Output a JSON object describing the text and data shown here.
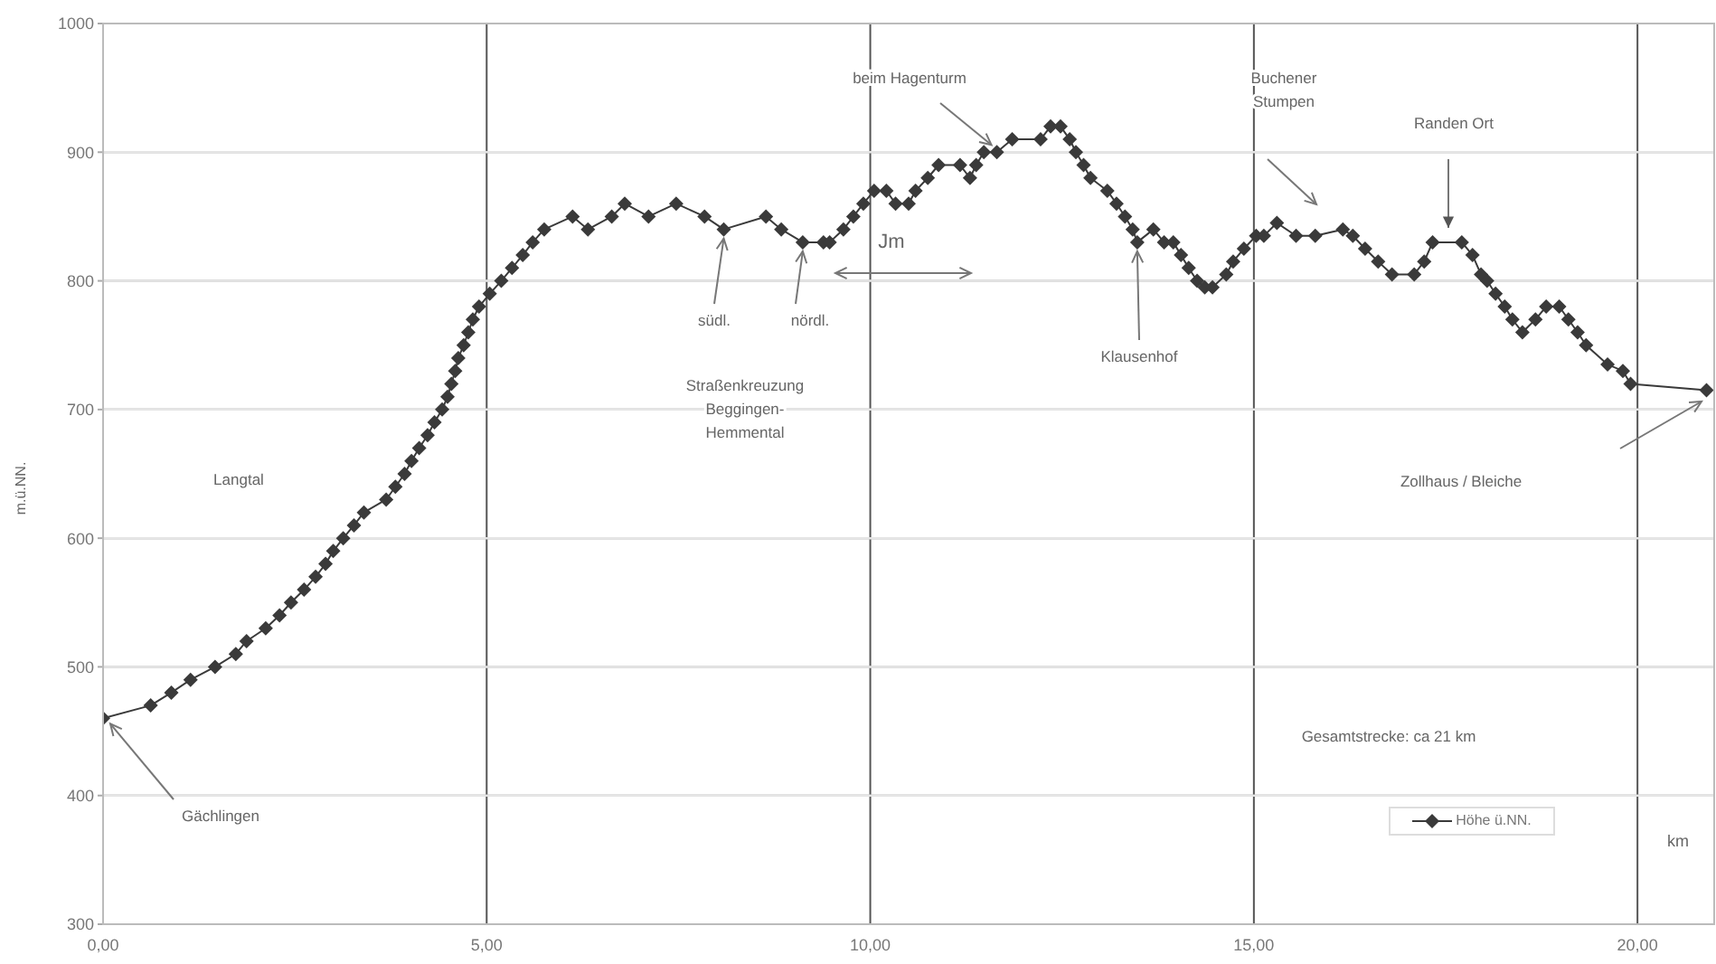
{
  "chart_data": {
    "type": "line",
    "xlabel": "km",
    "ylabel": "m.ü.NN.",
    "x": [
      0,
      0.62,
      0.89,
      1.14,
      1.46,
      1.73,
      1.87,
      2.12,
      2.3,
      2.45,
      2.62,
      2.77,
      2.9,
      3.0,
      3.13,
      3.27,
      3.4,
      3.69,
      3.81,
      3.93,
      4.02,
      4.12,
      4.23,
      4.32,
      4.42,
      4.49,
      4.54,
      4.59,
      4.63,
      4.7,
      4.76,
      4.82,
      4.9,
      5.04,
      5.19,
      5.33,
      5.47,
      5.6,
      5.75,
      6.12,
      6.32,
      6.63,
      6.8,
      7.11,
      7.47,
      7.84,
      8.09,
      8.64,
      8.84,
      9.12,
      9.39,
      9.47,
      9.65,
      9.78,
      9.91,
      10.05,
      10.21,
      10.33,
      10.5,
      10.59,
      10.75,
      10.89,
      11.17,
      11.3,
      11.38,
      11.48,
      11.65,
      11.85,
      12.22,
      12.35,
      12.48,
      12.6,
      12.68,
      12.78,
      12.87,
      13.09,
      13.21,
      13.32,
      13.42,
      13.48,
      13.69,
      13.83,
      13.95,
      14.05,
      14.15,
      14.26,
      14.36,
      14.46,
      14.64,
      14.73,
      14.87,
      15.03,
      15.13,
      15.3,
      15.55,
      15.8,
      16.16,
      16.29,
      16.45,
      16.62,
      16.8,
      17.09,
      17.22,
      17.33,
      17.71,
      17.85,
      17.96,
      18.04,
      18.15,
      18.27,
      18.37,
      18.5,
      18.67,
      18.81,
      18.98,
      19.1,
      19.22,
      19.33,
      19.61,
      19.81,
      19.91,
      20.9
    ],
    "series": [
      {
        "name": "Höhe ü.NN.",
        "color": "#3a3a3a",
        "values": [
          460,
          470,
          480,
          490,
          500,
          510,
          520,
          530,
          540,
          550,
          560,
          570,
          580,
          590,
          600,
          610,
          620,
          630,
          640,
          650,
          660,
          670,
          680,
          690,
          700,
          710,
          720,
          730,
          740,
          750,
          760,
          770,
          780,
          790,
          800,
          810,
          820,
          830,
          840,
          850,
          840,
          850,
          860,
          850,
          860,
          850,
          840,
          850,
          840,
          830,
          830,
          830,
          840,
          850,
          860,
          870,
          870,
          860,
          860,
          870,
          880,
          890,
          890,
          880,
          890,
          900,
          900,
          910,
          910,
          920,
          920,
          910,
          900,
          890,
          880,
          870,
          860,
          850,
          840,
          830,
          840,
          830,
          830,
          820,
          810,
          800,
          795,
          795,
          805,
          815,
          825,
          835,
          835,
          845,
          835,
          835,
          840,
          835,
          825,
          815,
          805,
          805,
          815,
          830,
          830,
          820,
          805,
          800,
          790,
          780,
          770,
          760,
          770,
          780,
          780,
          770,
          760,
          750,
          735,
          730,
          720,
          715
        ]
      }
    ],
    "xlim": [
      0,
      21
    ],
    "ylim": [
      300,
      1000
    ],
    "xticks": [
      {
        "value": 0,
        "label": "0,00"
      },
      {
        "value": 5,
        "label": "5,00"
      },
      {
        "value": 10,
        "label": "10,00"
      },
      {
        "value": 15,
        "label": "15,00"
      },
      {
        "value": 20,
        "label": "20,00"
      }
    ],
    "yticks": [
      300,
      400,
      500,
      600,
      700,
      800,
      900,
      1000
    ],
    "grid": true,
    "legend": "bottom right",
    "marker": "diamond",
    "line_style": "solid",
    "annotations": [
      {
        "text": "Gächlingen",
        "x": 0,
        "y": 460
      },
      "Langtal",
      {
        "text": "südl.",
        "x": 8.09,
        "y": 840
      },
      {
        "text": "nördl.",
        "x": 9.12,
        "y": 830
      },
      "Straßenkreuzung\nBeggingen-\nHemmental",
      {
        "text": "beim Hagenturm",
        "x": 11.65,
        "y": 900
      },
      "Jm",
      {
        "text": "Klausenhof",
        "x": 13.48,
        "y": 830
      },
      "Buchener\nStumpen",
      "Randen Ort",
      "Zollhaus / Bleiche",
      "Gesamtstrecke: ca 21 km"
    ]
  }
}
